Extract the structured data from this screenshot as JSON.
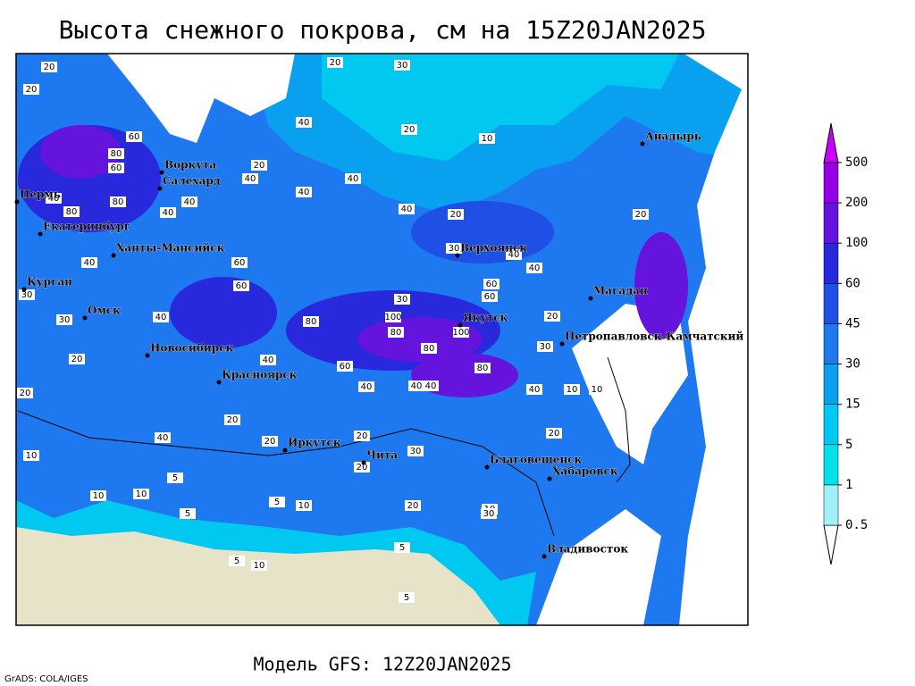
{
  "header": {
    "title": "Высота снежного покрова, см на 15Z20JAN2025"
  },
  "footer": {
    "model": "Модель GFS: 12Z20JAN2025",
    "credit": "GrADS: COLA/IGES"
  },
  "colorbar": {
    "levels": [
      0.5,
      1,
      5,
      15,
      30,
      45,
      60,
      100,
      200,
      500
    ],
    "colors": [
      "#ffffff",
      "#a0f0f8",
      "#00e0e8",
      "#00c8f0",
      "#0aa0f0",
      "#1e78f0",
      "#1e50e6",
      "#2828dc",
      "#6414dc",
      "#9600e6",
      "#c800ff"
    ]
  },
  "cities": [
    "Анадырь",
    "Воркута",
    "Салехард",
    "Пермь",
    "Екатеринбург",
    "Ханты-Мансийск",
    "Курган",
    "Омск",
    "Новосибирск",
    "Красноярск",
    "Верхоянск",
    "Якутск",
    "Магадан",
    "Петропавловск-Камчатский",
    "Иркутск",
    "Чита",
    "Благовещенск",
    "Хабаровск",
    "Владивосток"
  ],
  "contour_labels": [
    20,
    20,
    30,
    20,
    20,
    10,
    40,
    60,
    80,
    60,
    20,
    40,
    40,
    40,
    40,
    40,
    80,
    40,
    40,
    30,
    40,
    60,
    40,
    20,
    40,
    60,
    80,
    100,
    80,
    60,
    100,
    60,
    80,
    80,
    80,
    40,
    40,
    40,
    60,
    20,
    40,
    20,
    20,
    30,
    30,
    30,
    20,
    20,
    20,
    20,
    10,
    10,
    10,
    5,
    5,
    5,
    10,
    10,
    20,
    10,
    5,
    5,
    5,
    30,
    20,
    40,
    40,
    10,
    10,
    30,
    30,
    20,
    40
  ]
}
